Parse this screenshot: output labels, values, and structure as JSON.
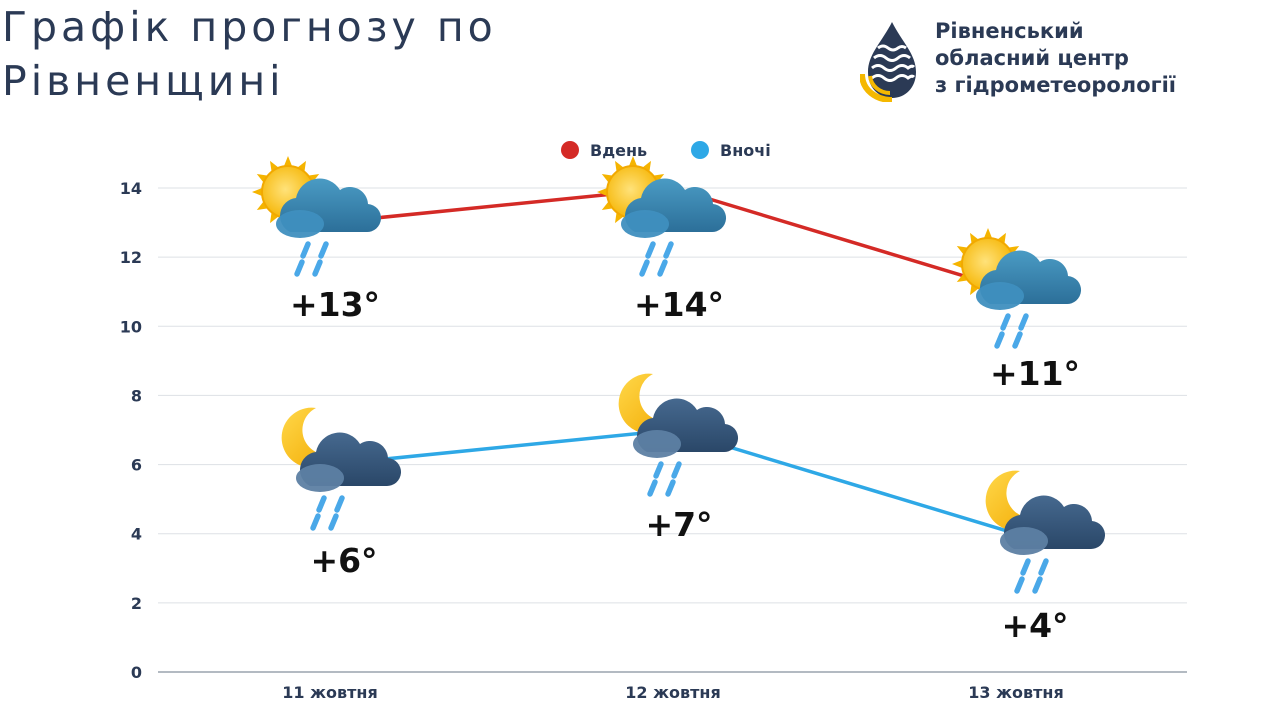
{
  "header": {
    "title_line1": "Графік прогнозу по",
    "title_line2": "Рівненщині"
  },
  "organization": {
    "line1": "Рівненський",
    "line2": "обласний центр",
    "line3": "з гідрометеорології",
    "logo_colors": {
      "navy": "#2b3a55",
      "yellow": "#f5b800"
    }
  },
  "chart_data": {
    "type": "line",
    "categories": [
      "11 жовтня",
      "12 жовтня",
      "13 жовтня"
    ],
    "series": [
      {
        "name": "Вдень",
        "color": "#d42a26",
        "values": [
          13,
          14,
          11
        ],
        "labels": [
          "+13°",
          "+14°",
          "+11°"
        ],
        "icon": "sun-cloud-rain-icon"
      },
      {
        "name": "Вночі",
        "color": "#2ea8e6",
        "values": [
          6,
          7,
          4
        ],
        "labels": [
          "+6°",
          "+7°",
          "+4°"
        ],
        "icon": "moon-cloud-rain-icon"
      }
    ],
    "ylim": [
      0,
      14
    ],
    "yticks": [
      0,
      2,
      4,
      6,
      8,
      10,
      12,
      14
    ],
    "grid": true,
    "legend_position": "top-center"
  }
}
